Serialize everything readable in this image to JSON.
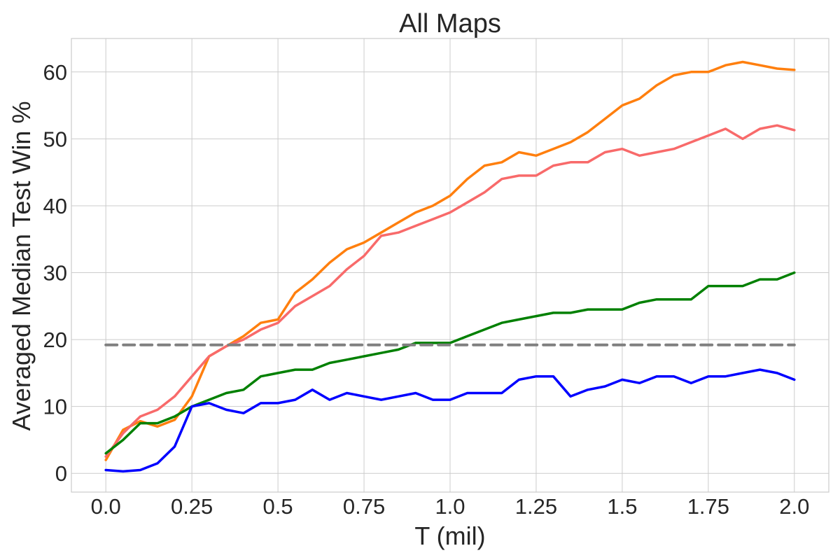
{
  "chart_data": {
    "type": "line",
    "title": "All Maps",
    "xlabel": "T (mil)",
    "ylabel": "Averaged Median Test Win %",
    "xlim": [
      -0.1,
      2.1
    ],
    "ylim": [
      -2.8,
      65
    ],
    "xticks": [
      0.0,
      0.25,
      0.5,
      0.75,
      1.0,
      1.25,
      1.5,
      1.75,
      2.0
    ],
    "xtick_labels": [
      "0.0",
      "0.25",
      "0.5",
      "0.75",
      "1.0",
      "1.25",
      "1.5",
      "1.75",
      "2.0"
    ],
    "yticks": [
      0,
      10,
      20,
      30,
      40,
      50,
      60
    ],
    "ytick_labels": [
      "0",
      "10",
      "20",
      "30",
      "40",
      "50",
      "60"
    ],
    "grid": true,
    "legend": "none",
    "series": [
      {
        "color": "#ff7f0e",
        "x": [
          0.0,
          0.05,
          0.1,
          0.15,
          0.2,
          0.25,
          0.3,
          0.35,
          0.4,
          0.45,
          0.5,
          0.55,
          0.6,
          0.65,
          0.7,
          0.75,
          0.8,
          0.85,
          0.9,
          0.95,
          1.0,
          1.05,
          1.1,
          1.15,
          1.2,
          1.25,
          1.3,
          1.35,
          1.4,
          1.45,
          1.5,
          1.55,
          1.6,
          1.65,
          1.7,
          1.75,
          1.8,
          1.85,
          1.9,
          1.95,
          2.0
        ],
        "y": [
          2.0,
          6.5,
          7.8,
          7.0,
          8.0,
          11.5,
          17.5,
          19.0,
          20.5,
          22.5,
          23.0,
          27.0,
          29.0,
          31.5,
          33.5,
          34.5,
          36.0,
          37.5,
          39.0,
          40.0,
          41.5,
          44.0,
          46.0,
          46.5,
          48.0,
          47.5,
          48.5,
          49.5,
          51.0,
          53.0,
          55.0,
          56.0,
          58.0,
          59.5,
          60.0,
          60.0,
          61.0,
          61.5,
          61.0,
          60.5,
          60.3
        ]
      },
      {
        "color": "#f86a6a",
        "x": [
          0.0,
          0.05,
          0.1,
          0.15,
          0.2,
          0.25,
          0.3,
          0.35,
          0.4,
          0.45,
          0.5,
          0.55,
          0.6,
          0.65,
          0.7,
          0.75,
          0.8,
          0.85,
          0.9,
          0.95,
          1.0,
          1.05,
          1.1,
          1.15,
          1.2,
          1.25,
          1.3,
          1.35,
          1.4,
          1.45,
          1.5,
          1.55,
          1.6,
          1.65,
          1.7,
          1.75,
          1.8,
          1.85,
          1.9,
          1.95,
          2.0
        ],
        "y": [
          2.5,
          6.0,
          8.5,
          9.5,
          11.5,
          14.5,
          17.5,
          19.0,
          20.0,
          21.5,
          22.5,
          25.0,
          26.5,
          28.0,
          30.5,
          32.5,
          35.5,
          36.0,
          37.0,
          38.0,
          39.0,
          40.5,
          42.0,
          44.0,
          44.5,
          44.5,
          46.0,
          46.5,
          46.5,
          48.0,
          48.5,
          47.5,
          48.0,
          48.5,
          49.5,
          50.5,
          51.5,
          50.0,
          51.5,
          52.0,
          51.3
        ]
      },
      {
        "color": "#008000",
        "x": [
          0.0,
          0.05,
          0.1,
          0.15,
          0.2,
          0.25,
          0.3,
          0.35,
          0.4,
          0.45,
          0.5,
          0.55,
          0.6,
          0.65,
          0.7,
          0.75,
          0.8,
          0.85,
          0.9,
          0.95,
          1.0,
          1.05,
          1.1,
          1.15,
          1.2,
          1.25,
          1.3,
          1.35,
          1.4,
          1.45,
          1.5,
          1.55,
          1.6,
          1.65,
          1.7,
          1.75,
          1.8,
          1.85,
          1.9,
          1.95,
          2.0
        ],
        "y": [
          3.0,
          5.0,
          7.5,
          7.5,
          8.5,
          10.0,
          11.0,
          12.0,
          12.5,
          14.5,
          15.0,
          15.5,
          15.5,
          16.5,
          17.0,
          17.5,
          18.0,
          18.5,
          19.5,
          19.5,
          19.5,
          20.5,
          21.5,
          22.5,
          23.0,
          23.5,
          24.0,
          24.0,
          24.5,
          24.5,
          24.5,
          25.5,
          26.0,
          26.0,
          26.0,
          28.0,
          28.0,
          28.0,
          29.0,
          29.0,
          30.0
        ]
      },
      {
        "color": "#0000ff",
        "x": [
          0.0,
          0.05,
          0.1,
          0.15,
          0.2,
          0.25,
          0.3,
          0.35,
          0.4,
          0.45,
          0.5,
          0.55,
          0.6,
          0.65,
          0.7,
          0.75,
          0.8,
          0.85,
          0.9,
          0.95,
          1.0,
          1.05,
          1.1,
          1.15,
          1.2,
          1.25,
          1.3,
          1.35,
          1.4,
          1.45,
          1.5,
          1.55,
          1.6,
          1.65,
          1.7,
          1.75,
          1.8,
          1.85,
          1.9,
          1.95,
          2.0
        ],
        "y": [
          0.5,
          0.3,
          0.5,
          1.5,
          4.0,
          10.0,
          10.5,
          9.5,
          9.0,
          10.5,
          10.5,
          11.0,
          12.5,
          11.0,
          12.0,
          11.5,
          11.0,
          11.5,
          12.0,
          11.0,
          11.0,
          12.0,
          12.0,
          12.0,
          14.0,
          14.5,
          14.5,
          11.5,
          12.5,
          13.0,
          14.0,
          13.5,
          14.5,
          14.5,
          13.5,
          14.5,
          14.5,
          15.0,
          15.5,
          15.0,
          14.0
        ]
      },
      {
        "color": "#808080",
        "style": "dashed",
        "x": [
          0.0,
          2.0
        ],
        "y": [
          19.2,
          19.2
        ]
      }
    ]
  }
}
